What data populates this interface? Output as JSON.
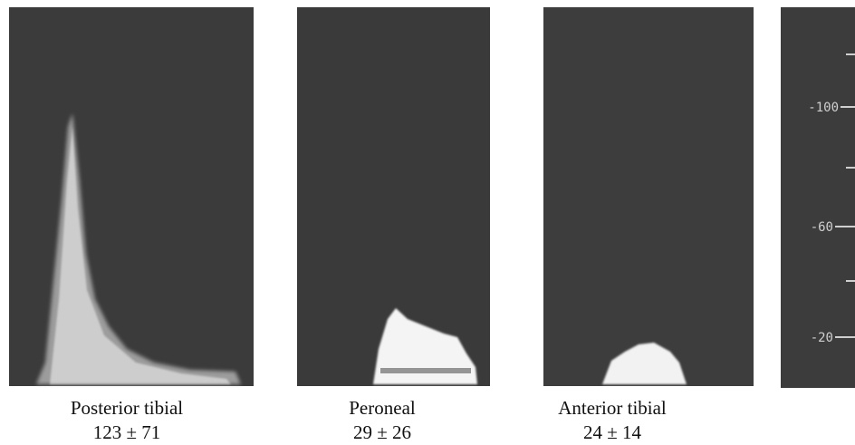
{
  "panels": [
    {
      "label": "Posterior tibial",
      "value": "123 ± 71"
    },
    {
      "label": "Peroneal",
      "value": "29 ± 26"
    },
    {
      "label": "Anterior tibial",
      "value": "24 ± 14"
    }
  ],
  "scale": {
    "ticks": [
      "-100",
      "-60",
      "-20"
    ]
  }
}
